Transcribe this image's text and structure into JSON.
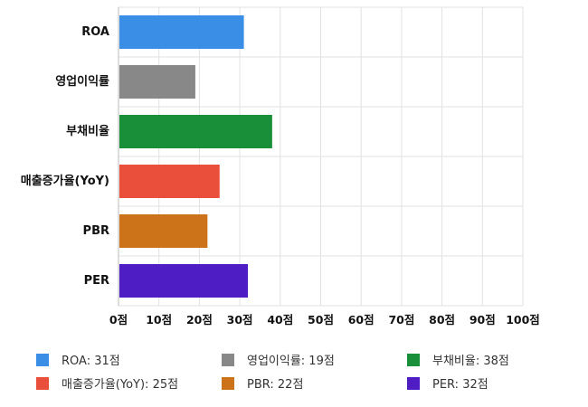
{
  "chart_data": {
    "type": "bar",
    "orientation": "horizontal",
    "categories": [
      "ROA",
      "영업이익률",
      "부채비율",
      "매출증가율(YoY)",
      "PBR",
      "PER"
    ],
    "values": [
      31,
      19,
      38,
      25,
      22,
      32
    ],
    "colors": [
      "#3a8ee6",
      "#888888",
      "#1a8f3a",
      "#ea4f3b",
      "#cc7219",
      "#4f1dc4"
    ],
    "xlim": [
      0,
      100
    ],
    "x_ticks": [
      0,
      10,
      20,
      30,
      40,
      50,
      60,
      70,
      80,
      90,
      100
    ],
    "tick_suffix": "점",
    "tick_labels": [
      "0점",
      "10점",
      "20점",
      "30점",
      "40점",
      "50점",
      "60점",
      "70점",
      "80점",
      "90점",
      "100점"
    ],
    "grid": true,
    "legend_position": "bottom",
    "legend": [
      {
        "label": "ROA: 31점",
        "color": "#3a8ee6"
      },
      {
        "label": "영업이익률: 19점",
        "color": "#888888"
      },
      {
        "label": "부채비율: 38점",
        "color": "#1a8f3a"
      },
      {
        "label": "매출증가율(YoY): 25점",
        "color": "#ea4f3b"
      },
      {
        "label": "PBR: 22점",
        "color": "#cc7219"
      },
      {
        "label": "PER: 32점",
        "color": "#4f1dc4"
      }
    ]
  }
}
